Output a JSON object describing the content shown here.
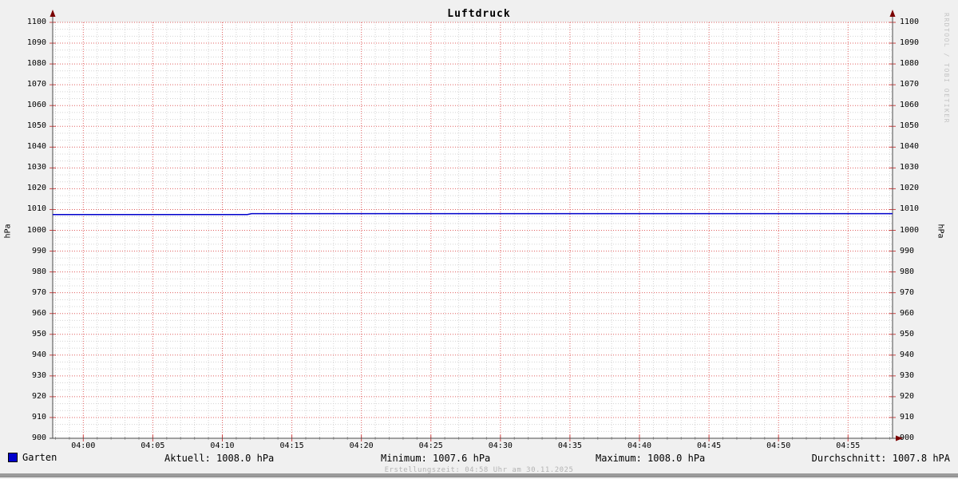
{
  "title": "Luftdruck",
  "watermark": "RRDTOOL / TOBI OETIKER",
  "footer": "Erstellungszeit: 04:58 Uhr am 30.11.2025",
  "axis_units": {
    "left": "hPa",
    "right": "hPa"
  },
  "legend": {
    "series_label": "Garten",
    "series_color": "#0000cc",
    "stats": {
      "aktuell": "Aktuell: 1008.0 hPa",
      "minimum": "Minimum: 1007.6 hPa",
      "maximum": "Maximum: 1008.0 hPa",
      "durchschnitt": "Durchschnitt: 1007.8 hPA"
    }
  },
  "chart_data": {
    "type": "line",
    "title": "Luftdruck",
    "xlabel": "",
    "ylabel": "hPa",
    "ylim": [
      900,
      1100
    ],
    "y_tick_step": 10,
    "y_minor_per_major": 3,
    "x_range_minutes": [
      -2.2,
      58.2
    ],
    "x_minor_step_minutes": 1,
    "x_ticks": [
      {
        "t": 0,
        "label": "04:00"
      },
      {
        "t": 5,
        "label": "04:05"
      },
      {
        "t": 10,
        "label": "04:10"
      },
      {
        "t": 15,
        "label": "04:15"
      },
      {
        "t": 20,
        "label": "04:20"
      },
      {
        "t": 25,
        "label": "04:25"
      },
      {
        "t": 30,
        "label": "04:30"
      },
      {
        "t": 35,
        "label": "04:35"
      },
      {
        "t": 40,
        "label": "04:40"
      },
      {
        "t": 45,
        "label": "04:45"
      },
      {
        "t": 50,
        "label": "04:50"
      },
      {
        "t": 55,
        "label": "04:55"
      }
    ],
    "grid": true,
    "legend_position": "bottom",
    "series": [
      {
        "name": "Garten",
        "color": "#0000cc",
        "points": [
          {
            "t": -2.2,
            "v": 1007.6
          },
          {
            "t": 11.8,
            "v": 1007.6
          },
          {
            "t": 12.1,
            "v": 1008.0
          },
          {
            "t": 58.2,
            "v": 1008.0
          }
        ]
      }
    ],
    "stats": {
      "aktuell_hpa": 1008.0,
      "minimum_hpa": 1007.6,
      "maximum_hpa": 1008.0,
      "durchschnitt_hpa": 1007.8
    },
    "colors": {
      "background": "#f0f0f0",
      "plot_background": "#ffffff",
      "major_grid": "#e06060",
      "minor_grid": "#d4d4d4",
      "axis": "#4a4a4a",
      "arrow": "#7a0000",
      "line": "#0000cc"
    }
  }
}
